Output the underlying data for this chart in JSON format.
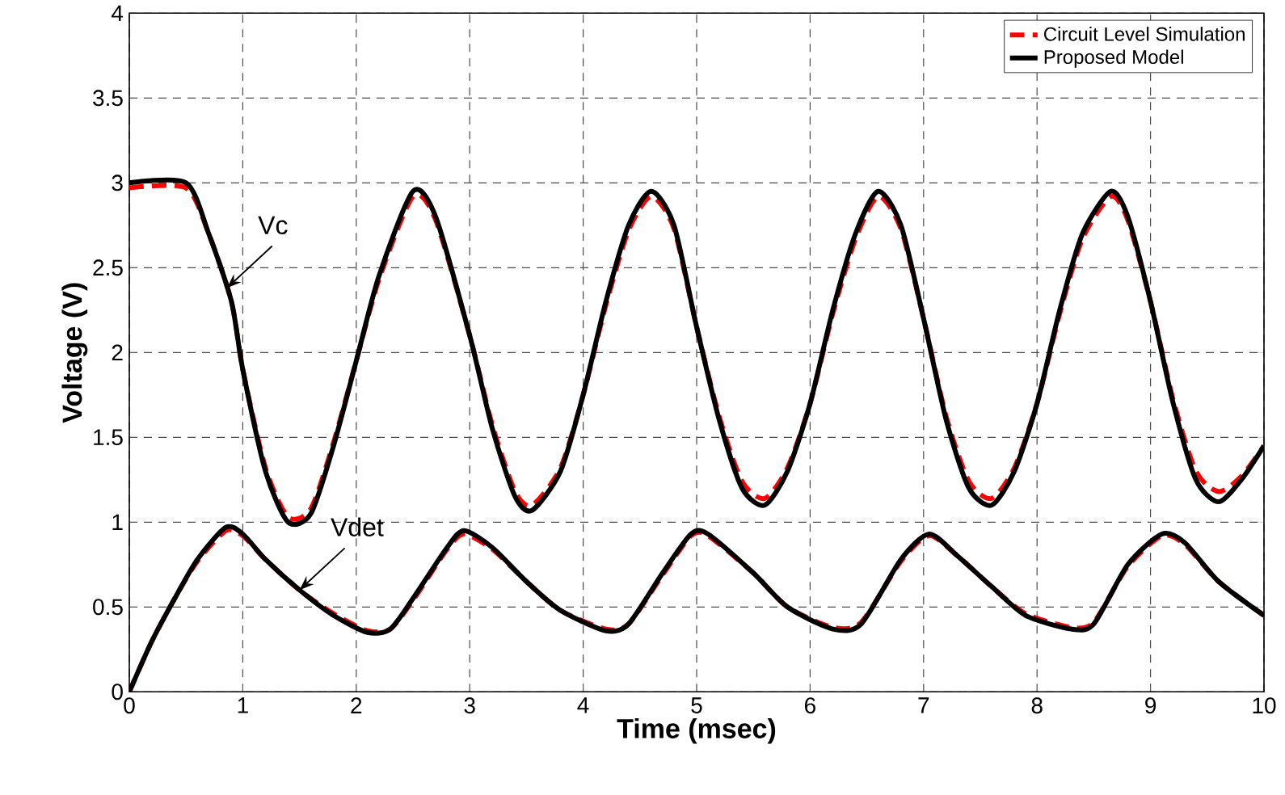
{
  "chart_data": {
    "type": "line",
    "xlabel": "Time (msec)",
    "ylabel": "Voltage (V)",
    "xlim": [
      0,
      10
    ],
    "ylim": [
      0,
      4
    ],
    "xticks": [
      0,
      1,
      2,
      3,
      4,
      5,
      6,
      7,
      8,
      9,
      10
    ],
    "yticks": [
      0,
      0.5,
      1,
      1.5,
      2,
      2.5,
      3,
      3.5,
      4
    ],
    "grid": true,
    "legend": "top right",
    "marker": "none",
    "annotations": [
      {
        "text": "Vc",
        "x": 0.86,
        "y": 2.38
      },
      {
        "text": "Vdet",
        "x": 1.5,
        "y": 0.6
      }
    ],
    "series": [
      {
        "name": "Circuit Level Simulation",
        "color": "#ff0000",
        "line_style": "dashed",
        "x": [
          0,
          0.5,
          0.7,
          0.9,
          1.0,
          1.2,
          1.4,
          1.6,
          1.8,
          2.0,
          2.2,
          2.5,
          2.7,
          3.0,
          3.2,
          3.4,
          3.55,
          3.8,
          4.0,
          4.2,
          4.4,
          4.6,
          4.8,
          5.0,
          5.2,
          5.4,
          5.6,
          5.8,
          6.0,
          6.2,
          6.4,
          6.6,
          6.8,
          7.0,
          7.2,
          7.4,
          7.6,
          7.8,
          8.0,
          8.2,
          8.4,
          8.65,
          8.8,
          9.0,
          9.2,
          9.4,
          9.6,
          9.8,
          10
        ],
        "values": [
          2.97,
          2.97,
          2.7,
          2.3,
          1.9,
          1.32,
          1.03,
          1.08,
          1.47,
          1.95,
          2.43,
          2.92,
          2.78,
          2.1,
          1.57,
          1.18,
          1.1,
          1.32,
          1.75,
          2.28,
          2.72,
          2.92,
          2.73,
          2.15,
          1.62,
          1.24,
          1.14,
          1.32,
          1.7,
          2.23,
          2.67,
          2.92,
          2.73,
          2.2,
          1.62,
          1.24,
          1.14,
          1.32,
          1.7,
          2.23,
          2.67,
          2.92,
          2.78,
          2.3,
          1.72,
          1.3,
          1.18,
          1.27,
          1.45
        ]
      },
      {
        "name": "Proposed Model",
        "color": "#000000",
        "line_style": "solid",
        "x": [
          0,
          0.5,
          0.7,
          0.9,
          1.0,
          1.2,
          1.4,
          1.6,
          1.8,
          2.0,
          2.2,
          2.5,
          2.7,
          3.0,
          3.2,
          3.4,
          3.55,
          3.8,
          4.0,
          4.2,
          4.4,
          4.6,
          4.8,
          5.0,
          5.2,
          5.4,
          5.6,
          5.8,
          6.0,
          6.2,
          6.4,
          6.6,
          6.8,
          7.0,
          7.2,
          7.4,
          7.6,
          7.8,
          8.0,
          8.2,
          8.4,
          8.65,
          8.8,
          9.0,
          9.2,
          9.4,
          9.6,
          9.8,
          10
        ],
        "values": [
          3,
          3,
          2.7,
          2.3,
          1.9,
          1.3,
          1.0,
          1.05,
          1.45,
          1.95,
          2.45,
          2.95,
          2.8,
          2.1,
          1.55,
          1.15,
          1.07,
          1.3,
          1.75,
          2.3,
          2.75,
          2.95,
          2.75,
          2.15,
          1.6,
          1.2,
          1.1,
          1.3,
          1.7,
          2.25,
          2.7,
          2.95,
          2.75,
          2.2,
          1.6,
          1.2,
          1.1,
          1.3,
          1.7,
          2.25,
          2.7,
          2.95,
          2.8,
          2.3,
          1.7,
          1.25,
          1.12,
          1.25,
          1.45
        ]
      },
      {
        "color": "#ff0000",
        "line_style": "dashed",
        "x": [
          0,
          0.2,
          0.4,
          0.6,
          0.85,
          1.0,
          1.2,
          1.5,
          1.8,
          2.1,
          2.3,
          2.5,
          2.8,
          2.95,
          3.2,
          3.5,
          3.8,
          4.2,
          4.4,
          4.7,
          4.95,
          5.1,
          5.5,
          5.8,
          6.2,
          6.45,
          6.8,
          7.05,
          7.3,
          7.6,
          7.9,
          8.3,
          8.5,
          8.8,
          9.1,
          9.3,
          9.6,
          10
        ],
        "values": [
          0,
          0.3,
          0.55,
          0.77,
          0.95,
          0.92,
          0.78,
          0.6,
          0.46,
          0.36,
          0.37,
          0.54,
          0.84,
          0.93,
          0.84,
          0.65,
          0.48,
          0.37,
          0.4,
          0.69,
          0.92,
          0.92,
          0.7,
          0.5,
          0.38,
          0.41,
          0.77,
          0.92,
          0.8,
          0.62,
          0.46,
          0.38,
          0.41,
          0.74,
          0.92,
          0.87,
          0.65,
          0.45
        ]
      },
      {
        "color": "#000000",
        "line_style": "solid",
        "x": [
          0,
          0.2,
          0.4,
          0.6,
          0.85,
          1.0,
          1.2,
          1.5,
          1.8,
          2.1,
          2.3,
          2.5,
          2.8,
          2.95,
          3.2,
          3.5,
          3.8,
          4.2,
          4.4,
          4.7,
          4.95,
          5.1,
          5.5,
          5.8,
          6.2,
          6.45,
          6.8,
          7.05,
          7.3,
          7.6,
          7.9,
          8.3,
          8.5,
          8.8,
          9.1,
          9.3,
          9.6,
          10
        ],
        "values": [
          0,
          0.3,
          0.55,
          0.78,
          0.97,
          0.93,
          0.78,
          0.6,
          0.45,
          0.35,
          0.37,
          0.55,
          0.85,
          0.95,
          0.85,
          0.65,
          0.48,
          0.36,
          0.4,
          0.7,
          0.93,
          0.93,
          0.7,
          0.5,
          0.37,
          0.4,
          0.78,
          0.93,
          0.8,
          0.62,
          0.45,
          0.37,
          0.4,
          0.75,
          0.93,
          0.88,
          0.65,
          0.45
        ]
      }
    ]
  }
}
